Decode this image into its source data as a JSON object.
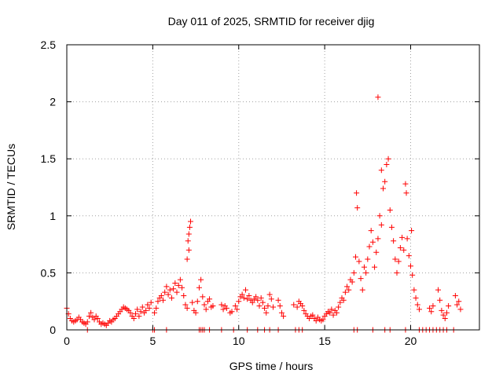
{
  "chart_data": {
    "type": "scatter",
    "title": "Day 011 of 2025, SRMTID for receiver djig",
    "xlabel": "GPS time / hours",
    "ylabel": "SRMTID / TECUs",
    "xlim": [
      0,
      24
    ],
    "ylim": [
      0,
      2.5
    ],
    "grid": true,
    "marker": "+",
    "marker_color": "#ff0000",
    "xticks": [
      0,
      5,
      10,
      15,
      20
    ],
    "xtick_labels": [
      "0",
      "5",
      "10",
      "15",
      "20"
    ],
    "yticks": [
      0,
      0.5,
      1,
      1.5,
      2,
      2.5
    ],
    "ytick_labels": [
      "0",
      "0.5",
      "1",
      "1.5",
      "2",
      "2.5"
    ],
    "series": [
      {
        "name": "SRMTID",
        "points": [
          [
            0.0,
            0.19
          ],
          [
            0.1,
            0.14
          ],
          [
            0.2,
            0.1
          ],
          [
            0.3,
            0.08
          ],
          [
            0.4,
            0.07
          ],
          [
            0.5,
            0.08
          ],
          [
            0.6,
            0.09
          ],
          [
            0.7,
            0.11
          ],
          [
            0.8,
            0.09
          ],
          [
            0.9,
            0.07
          ],
          [
            1.0,
            0.06
          ],
          [
            1.1,
            0.05
          ],
          [
            1.2,
            0.07
          ],
          [
            1.3,
            0.12
          ],
          [
            1.4,
            0.15
          ],
          [
            1.5,
            0.11
          ],
          [
            1.6,
            0.09
          ],
          [
            1.7,
            0.12
          ],
          [
            1.8,
            0.1
          ],
          [
            1.9,
            0.07
          ],
          [
            2.0,
            0.05
          ],
          [
            2.1,
            0.06
          ],
          [
            2.2,
            0.05
          ],
          [
            2.3,
            0.04
          ],
          [
            2.4,
            0.06
          ],
          [
            2.5,
            0.08
          ],
          [
            2.6,
            0.07
          ],
          [
            2.7,
            0.09
          ],
          [
            2.8,
            0.1
          ],
          [
            2.9,
            0.12
          ],
          [
            3.0,
            0.14
          ],
          [
            3.1,
            0.16
          ],
          [
            3.2,
            0.18
          ],
          [
            3.3,
            0.2
          ],
          [
            3.4,
            0.19
          ],
          [
            3.5,
            0.18
          ],
          [
            3.6,
            0.17
          ],
          [
            3.7,
            0.15
          ],
          [
            3.8,
            0.12
          ],
          [
            3.9,
            0.1
          ],
          [
            4.0,
            0.14
          ],
          [
            4.1,
            0.18
          ],
          [
            4.2,
            0.12
          ],
          [
            4.3,
            0.16
          ],
          [
            4.4,
            0.2
          ],
          [
            4.5,
            0.15
          ],
          [
            4.6,
            0.17
          ],
          [
            4.7,
            0.22
          ],
          [
            4.8,
            0.19
          ],
          [
            4.9,
            0.24
          ],
          [
            5.1,
            0.15
          ],
          [
            5.2,
            0.19
          ],
          [
            5.3,
            0.25
          ],
          [
            5.4,
            0.28
          ],
          [
            5.5,
            0.3
          ],
          [
            5.6,
            0.26
          ],
          [
            5.7,
            0.33
          ],
          [
            5.8,
            0.38
          ],
          [
            5.9,
            0.31
          ],
          [
            6.0,
            0.35
          ],
          [
            6.1,
            0.28
          ],
          [
            6.2,
            0.36
          ],
          [
            6.3,
            0.41
          ],
          [
            6.4,
            0.33
          ],
          [
            6.5,
            0.39
          ],
          [
            6.6,
            0.44
          ],
          [
            6.7,
            0.37
          ],
          [
            6.8,
            0.3
          ],
          [
            6.9,
            0.22
          ],
          [
            7.0,
            0.19
          ],
          [
            7.0,
            0.62
          ],
          [
            7.05,
            0.78
          ],
          [
            7.1,
            0.84
          ],
          [
            7.15,
            0.9
          ],
          [
            7.2,
            0.95
          ],
          [
            7.1,
            0.7
          ],
          [
            7.3,
            0.24
          ],
          [
            7.4,
            0.17
          ],
          [
            7.5,
            0.15
          ],
          [
            7.6,
            0.25
          ],
          [
            7.7,
            0.37
          ],
          [
            7.8,
            0.44
          ],
          [
            7.9,
            0.29
          ],
          [
            8.0,
            0.22
          ],
          [
            8.1,
            0.18
          ],
          [
            8.2,
            0.25
          ],
          [
            8.3,
            0.27
          ],
          [
            8.4,
            0.2
          ],
          [
            8.5,
            0.21
          ],
          [
            9.0,
            0.22
          ],
          [
            9.1,
            0.18
          ],
          [
            9.2,
            0.21
          ],
          [
            9.3,
            0.19
          ],
          [
            9.5,
            0.15
          ],
          [
            9.6,
            0.16
          ],
          [
            9.8,
            0.21
          ],
          [
            9.9,
            0.18
          ],
          [
            10.0,
            0.25
          ],
          [
            10.1,
            0.29
          ],
          [
            10.2,
            0.31
          ],
          [
            10.3,
            0.28
          ],
          [
            10.4,
            0.35
          ],
          [
            10.5,
            0.27
          ],
          [
            10.6,
            0.3
          ],
          [
            10.7,
            0.26
          ],
          [
            10.8,
            0.24
          ],
          [
            10.9,
            0.27
          ],
          [
            11.0,
            0.29
          ],
          [
            11.1,
            0.26
          ],
          [
            11.2,
            0.21
          ],
          [
            11.3,
            0.28
          ],
          [
            11.4,
            0.24
          ],
          [
            11.5,
            0.19
          ],
          [
            11.6,
            0.15
          ],
          [
            11.7,
            0.21
          ],
          [
            11.8,
            0.31
          ],
          [
            11.9,
            0.27
          ],
          [
            12.0,
            0.2
          ],
          [
            12.3,
            0.26
          ],
          [
            12.4,
            0.21
          ],
          [
            12.5,
            0.15
          ],
          [
            12.6,
            0.12
          ],
          [
            13.2,
            0.22
          ],
          [
            13.4,
            0.2
          ],
          [
            13.5,
            0.25
          ],
          [
            13.6,
            0.23
          ],
          [
            13.7,
            0.21
          ],
          [
            13.8,
            0.17
          ],
          [
            13.9,
            0.14
          ],
          [
            14.0,
            0.12
          ],
          [
            14.1,
            0.1
          ],
          [
            14.2,
            0.12
          ],
          [
            14.3,
            0.13
          ],
          [
            14.4,
            0.1
          ],
          [
            14.5,
            0.08
          ],
          [
            14.6,
            0.11
          ],
          [
            14.7,
            0.09
          ],
          [
            14.8,
            0.08
          ],
          [
            14.9,
            0.09
          ],
          [
            15.0,
            0.12
          ],
          [
            15.1,
            0.14
          ],
          [
            15.2,
            0.16
          ],
          [
            15.3,
            0.15
          ],
          [
            15.4,
            0.18
          ],
          [
            15.5,
            0.13
          ],
          [
            15.6,
            0.17
          ],
          [
            15.7,
            0.15
          ],
          [
            15.8,
            0.2
          ],
          [
            15.9,
            0.24
          ],
          [
            16.0,
            0.28
          ],
          [
            16.1,
            0.26
          ],
          [
            16.2,
            0.33
          ],
          [
            16.3,
            0.38
          ],
          [
            16.4,
            0.35
          ],
          [
            16.5,
            0.44
          ],
          [
            16.6,
            0.42
          ],
          [
            16.7,
            0.5
          ],
          [
            16.8,
            0.64
          ],
          [
            16.85,
            1.2
          ],
          [
            16.9,
            1.07
          ],
          [
            17.0,
            0.6
          ],
          [
            17.1,
            0.45
          ],
          [
            17.2,
            0.35
          ],
          [
            17.3,
            0.55
          ],
          [
            17.4,
            0.5
          ],
          [
            17.5,
            0.62
          ],
          [
            17.6,
            0.73
          ],
          [
            17.7,
            0.87
          ],
          [
            17.8,
            0.77
          ],
          [
            17.9,
            0.55
          ],
          [
            18.0,
            0.68
          ],
          [
            18.1,
            0.8
          ],
          [
            18.2,
            1.0
          ],
          [
            18.3,
            0.92
          ],
          [
            18.4,
            1.24
          ],
          [
            18.5,
            1.3
          ],
          [
            18.6,
            1.45
          ],
          [
            18.7,
            1.5
          ],
          [
            18.1,
            2.04
          ],
          [
            18.3,
            1.4
          ],
          [
            18.8,
            1.05
          ],
          [
            18.9,
            0.9
          ],
          [
            19.0,
            0.78
          ],
          [
            19.1,
            0.62
          ],
          [
            19.2,
            0.5
          ],
          [
            19.3,
            0.6
          ],
          [
            19.4,
            0.72
          ],
          [
            19.5,
            0.81
          ],
          [
            19.6,
            0.7
          ],
          [
            19.7,
            1.28
          ],
          [
            19.75,
            1.2
          ],
          [
            19.8,
            0.8
          ],
          [
            19.9,
            0.65
          ],
          [
            20.0,
            0.56
          ],
          [
            20.05,
            0.87
          ],
          [
            20.1,
            0.48
          ],
          [
            20.2,
            0.35
          ],
          [
            20.3,
            0.28
          ],
          [
            20.4,
            0.22
          ],
          [
            20.5,
            0.18
          ],
          [
            21.1,
            0.19
          ],
          [
            21.2,
            0.16
          ],
          [
            21.3,
            0.21
          ],
          [
            21.6,
            0.35
          ],
          [
            21.7,
            0.26
          ],
          [
            21.8,
            0.17
          ],
          [
            21.9,
            0.13
          ],
          [
            22.0,
            0.1
          ],
          [
            22.1,
            0.15
          ],
          [
            22.2,
            0.21
          ],
          [
            22.6,
            0.3
          ],
          [
            22.7,
            0.22
          ],
          [
            22.8,
            0.25
          ],
          [
            22.9,
            0.18
          ],
          [
            5.0,
            0.0
          ],
          [
            5.1,
            0.0
          ],
          [
            5.8,
            0.0
          ],
          [
            7.7,
            0.0
          ],
          [
            7.8,
            0.0
          ],
          [
            7.9,
            0.0
          ],
          [
            8.0,
            0.0
          ],
          [
            8.3,
            0.0
          ],
          [
            9.0,
            0.0
          ],
          [
            9.7,
            0.0
          ],
          [
            10.5,
            0.0
          ],
          [
            11.1,
            0.0
          ],
          [
            11.5,
            0.0
          ],
          [
            11.8,
            0.0
          ],
          [
            12.3,
            0.0
          ],
          [
            13.3,
            0.0
          ],
          [
            13.5,
            0.0
          ],
          [
            13.7,
            0.0
          ],
          [
            16.7,
            0.0
          ],
          [
            16.9,
            0.0
          ],
          [
            17.8,
            0.0
          ],
          [
            18.5,
            0.0
          ],
          [
            18.8,
            0.0
          ],
          [
            19.7,
            0.0
          ],
          [
            20.5,
            0.0
          ],
          [
            20.7,
            0.0
          ],
          [
            20.9,
            0.0
          ],
          [
            21.1,
            0.0
          ],
          [
            21.3,
            0.0
          ],
          [
            21.5,
            0.0
          ],
          [
            21.7,
            0.0
          ],
          [
            21.9,
            0.0
          ],
          [
            22.1,
            0.0
          ],
          [
            22.5,
            0.0
          ],
          [
            1.2,
            0.0
          ]
        ]
      }
    ]
  }
}
